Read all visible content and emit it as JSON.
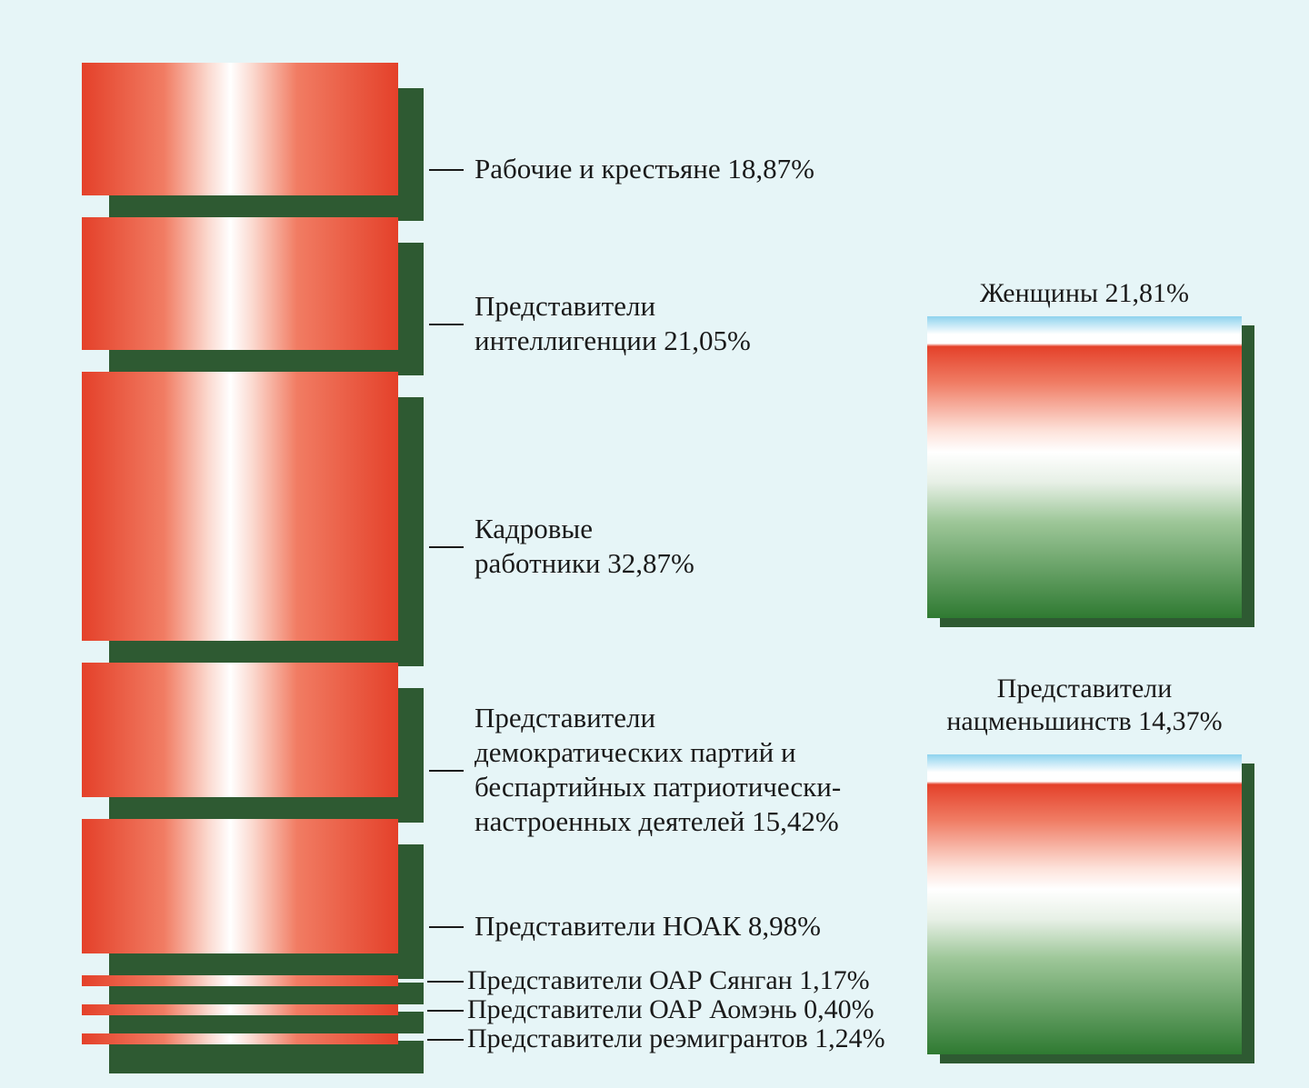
{
  "chart_data": {
    "type": "bar",
    "title": "",
    "xlabel": "",
    "ylabel": "",
    "stacked": true,
    "categories": [
      "Рабочие и крестьяне",
      "Представители интеллигенции",
      "Кадровые работники",
      "Представители демократических партий и беспартийных патриотически-настроенных деятелей",
      "Представители НОАК",
      "Представители ОАР Сянган",
      "Представители ОАР Аомэнь",
      "Представители реэмигрантов"
    ],
    "values": [
      18.87,
      21.05,
      32.87,
      15.42,
      8.98,
      1.17,
      0.4,
      1.24
    ],
    "unit": "%",
    "labels": [
      [
        "Рабочие и крестьяне 18,87%"
      ],
      [
        "Представители",
        "интеллигенции 21,05%"
      ],
      [
        "Кадровые",
        "работники 32,87%"
      ],
      [
        "Представители",
        "демократических партий и",
        "беспартийных патриотически-",
        "настроенных деятелей 15,42%"
      ],
      [
        "Представители НОАК 8,98%"
      ],
      [
        "Представители ОАР Сянган 1,17%"
      ],
      [
        "Представители ОАР Аомэнь 0,40%"
      ],
      [
        "Представители реэмигрантов 1,24%"
      ]
    ],
    "shares": [
      {
        "name": "Женщины",
        "value": 21.81,
        "label": [
          "Женщины 21,81%"
        ]
      },
      {
        "name": "Представители нацменьшинств",
        "value": 14.37,
        "label": [
          "Представители",
          "нацменьшинств 14,37%"
        ]
      }
    ],
    "colors": {
      "bar_edge": "#e4412a",
      "bar_center": "#ffffff",
      "shadow": "#2e5a32",
      "box_top": "#8ed3ee",
      "box_bottom": "#2f7a32",
      "background": "#e6f5f7"
    }
  }
}
